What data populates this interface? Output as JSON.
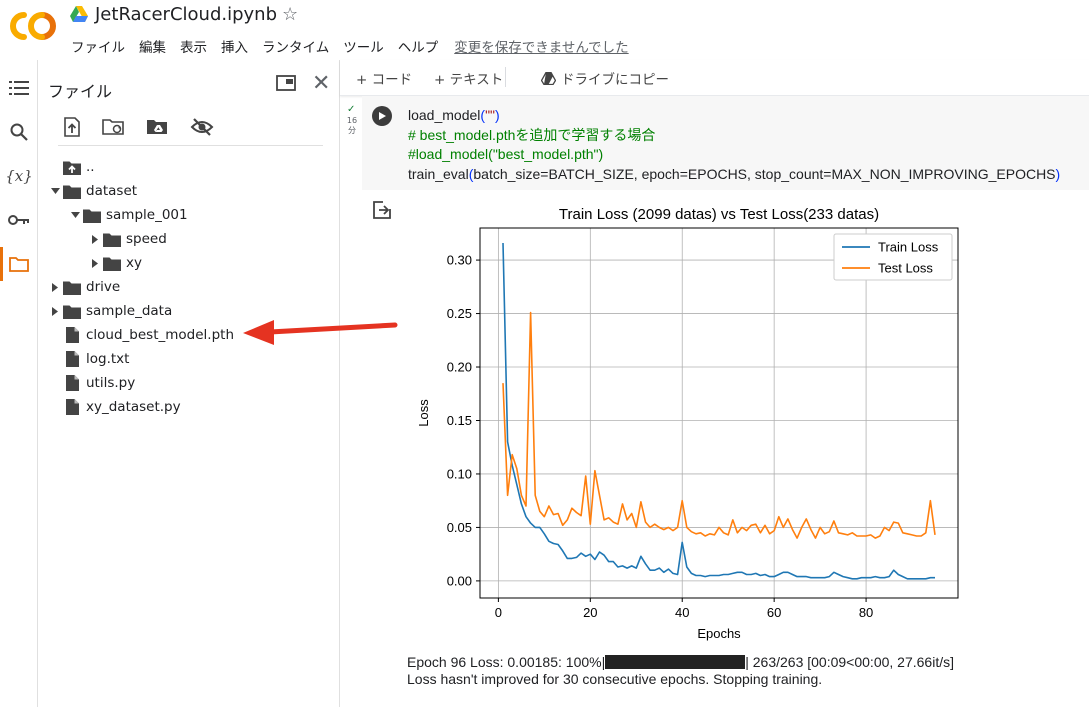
{
  "header": {
    "notebook_title": "JetRacerCloud.ipynb",
    "menu": [
      "ファイル",
      "編集",
      "表示",
      "挿入",
      "ランタイム",
      "ツール",
      "ヘルプ"
    ],
    "save_warning": "変更を保存できませんでした",
    "logo_color": "#f9ab00"
  },
  "rail": {
    "icons": [
      "toc-icon",
      "search-icon",
      "variables-icon",
      "key-icon",
      "folder-icon"
    ],
    "variables_label": "{x}",
    "active": "folder-icon",
    "accent": "#e8710a"
  },
  "file_panel": {
    "title": "ファイル",
    "toolbar": [
      "upload-icon",
      "refresh-folder-icon",
      "mount-drive-icon",
      "hide-icon"
    ],
    "tree": [
      {
        "label": "..",
        "type": "up",
        "depth": 0
      },
      {
        "label": "dataset",
        "type": "folder",
        "depth": 0,
        "expanded": true
      },
      {
        "label": "sample_001",
        "type": "folder",
        "depth": 1,
        "expanded": true
      },
      {
        "label": "speed",
        "type": "folder",
        "depth": 2,
        "expanded": false
      },
      {
        "label": "xy",
        "type": "folder",
        "depth": 2,
        "expanded": false
      },
      {
        "label": "drive",
        "type": "folder",
        "depth": 0,
        "expanded": false
      },
      {
        "label": "sample_data",
        "type": "folder",
        "depth": 0,
        "expanded": false
      },
      {
        "label": "cloud_best_model.pth",
        "type": "file",
        "depth": 0
      },
      {
        "label": "log.txt",
        "type": "file",
        "depth": 0
      },
      {
        "label": "utils.py",
        "type": "file",
        "depth": 0
      },
      {
        "label": "xy_dataset.py",
        "type": "file",
        "depth": 0
      }
    ]
  },
  "notebook_toolbar": {
    "add_code": "+ コード",
    "add_text": "+ テキスト",
    "copy_to_drive": "ドライブにコピー"
  },
  "cell": {
    "exec_check": "✓",
    "exec_time": "16\n分",
    "code_lines": [
      {
        "text": "load_model(\"\")"
      },
      {
        "text": "# best_model.pthを追加で学習する場合",
        "comment": true
      },
      {
        "text": "#load_model(\"best_model.pth\")",
        "comment": true
      },
      {
        "text": "train_eval(batch_size=BATCH_SIZE, epoch=EPOCHS, stop_count=MAX_NON_IMPROVING_EPOCHS)"
      }
    ],
    "output_line1_prefix": "Epoch 96 Loss: 0.00185: 100%|",
    "output_line1_suffix": "| 263/263 [00:09<00:00, 27.66it/s]",
    "output_line2": "Loss hasn't improved for 30 consecutive epochs. Stopping training."
  },
  "chart_data": {
    "type": "line",
    "title": "Train Loss (2099 datas) vs Test Loss(233 datas)",
    "xlabel": "Epochs",
    "ylabel": "Loss",
    "xlim": [
      -4,
      100
    ],
    "ylim": [
      -0.016,
      0.33
    ],
    "xticks": [
      0,
      20,
      40,
      60,
      80
    ],
    "yticks": [
      0.0,
      0.05,
      0.1,
      0.15,
      0.2,
      0.25,
      0.3
    ],
    "ytick_labels": [
      "0.00",
      "0.05",
      "0.10",
      "0.15",
      "0.20",
      "0.25",
      "0.30"
    ],
    "grid": true,
    "legend": "top-right",
    "series": [
      {
        "name": "Train Loss",
        "color": "#1f77b4",
        "values": [
          0.316,
          0.13,
          0.108,
          0.09,
          0.072,
          0.06,
          0.054,
          0.05,
          0.05,
          0.044,
          0.037,
          0.035,
          0.034,
          0.028,
          0.021,
          0.021,
          0.022,
          0.026,
          0.023,
          0.025,
          0.02,
          0.027,
          0.024,
          0.018,
          0.018,
          0.013,
          0.014,
          0.012,
          0.014,
          0.012,
          0.023,
          0.016,
          0.01,
          0.01,
          0.012,
          0.008,
          0.011,
          0.007,
          0.006,
          0.036,
          0.013,
          0.007,
          0.005,
          0.005,
          0.004,
          0.005,
          0.005,
          0.005,
          0.006,
          0.006,
          0.007,
          0.008,
          0.008,
          0.006,
          0.006,
          0.007,
          0.005,
          0.006,
          0.004,
          0.004,
          0.006,
          0.008,
          0.008,
          0.006,
          0.004,
          0.004,
          0.004,
          0.003,
          0.003,
          0.003,
          0.003,
          0.004,
          0.008,
          0.006,
          0.004,
          0.003,
          0.002,
          0.002,
          0.003,
          0.003,
          0.003,
          0.004,
          0.003,
          0.003,
          0.004,
          0.01,
          0.006,
          0.004,
          0.002,
          0.002,
          0.002,
          0.002,
          0.002,
          0.003,
          0.003
        ]
      },
      {
        "name": "Test Loss",
        "color": "#ff7f0e",
        "values": [
          0.185,
          0.08,
          0.118,
          0.105,
          0.08,
          0.07,
          0.251,
          0.08,
          0.065,
          0.06,
          0.07,
          0.062,
          0.063,
          0.052,
          0.057,
          0.068,
          0.064,
          0.061,
          0.098,
          0.053,
          0.103,
          0.08,
          0.057,
          0.059,
          0.055,
          0.053,
          0.072,
          0.057,
          0.063,
          0.05,
          0.074,
          0.055,
          0.05,
          0.053,
          0.05,
          0.048,
          0.05,
          0.047,
          0.05,
          0.075,
          0.05,
          0.046,
          0.044,
          0.045,
          0.042,
          0.044,
          0.043,
          0.05,
          0.045,
          0.043,
          0.057,
          0.045,
          0.05,
          0.047,
          0.052,
          0.053,
          0.045,
          0.052,
          0.044,
          0.047,
          0.06,
          0.05,
          0.058,
          0.048,
          0.04,
          0.05,
          0.058,
          0.048,
          0.04,
          0.05,
          0.044,
          0.046,
          0.056,
          0.045,
          0.044,
          0.043,
          0.045,
          0.042,
          0.042,
          0.042,
          0.043,
          0.04,
          0.042,
          0.05,
          0.047,
          0.055,
          0.054,
          0.045,
          0.044,
          0.043,
          0.042,
          0.042,
          0.045,
          0.075,
          0.043
        ]
      }
    ]
  }
}
